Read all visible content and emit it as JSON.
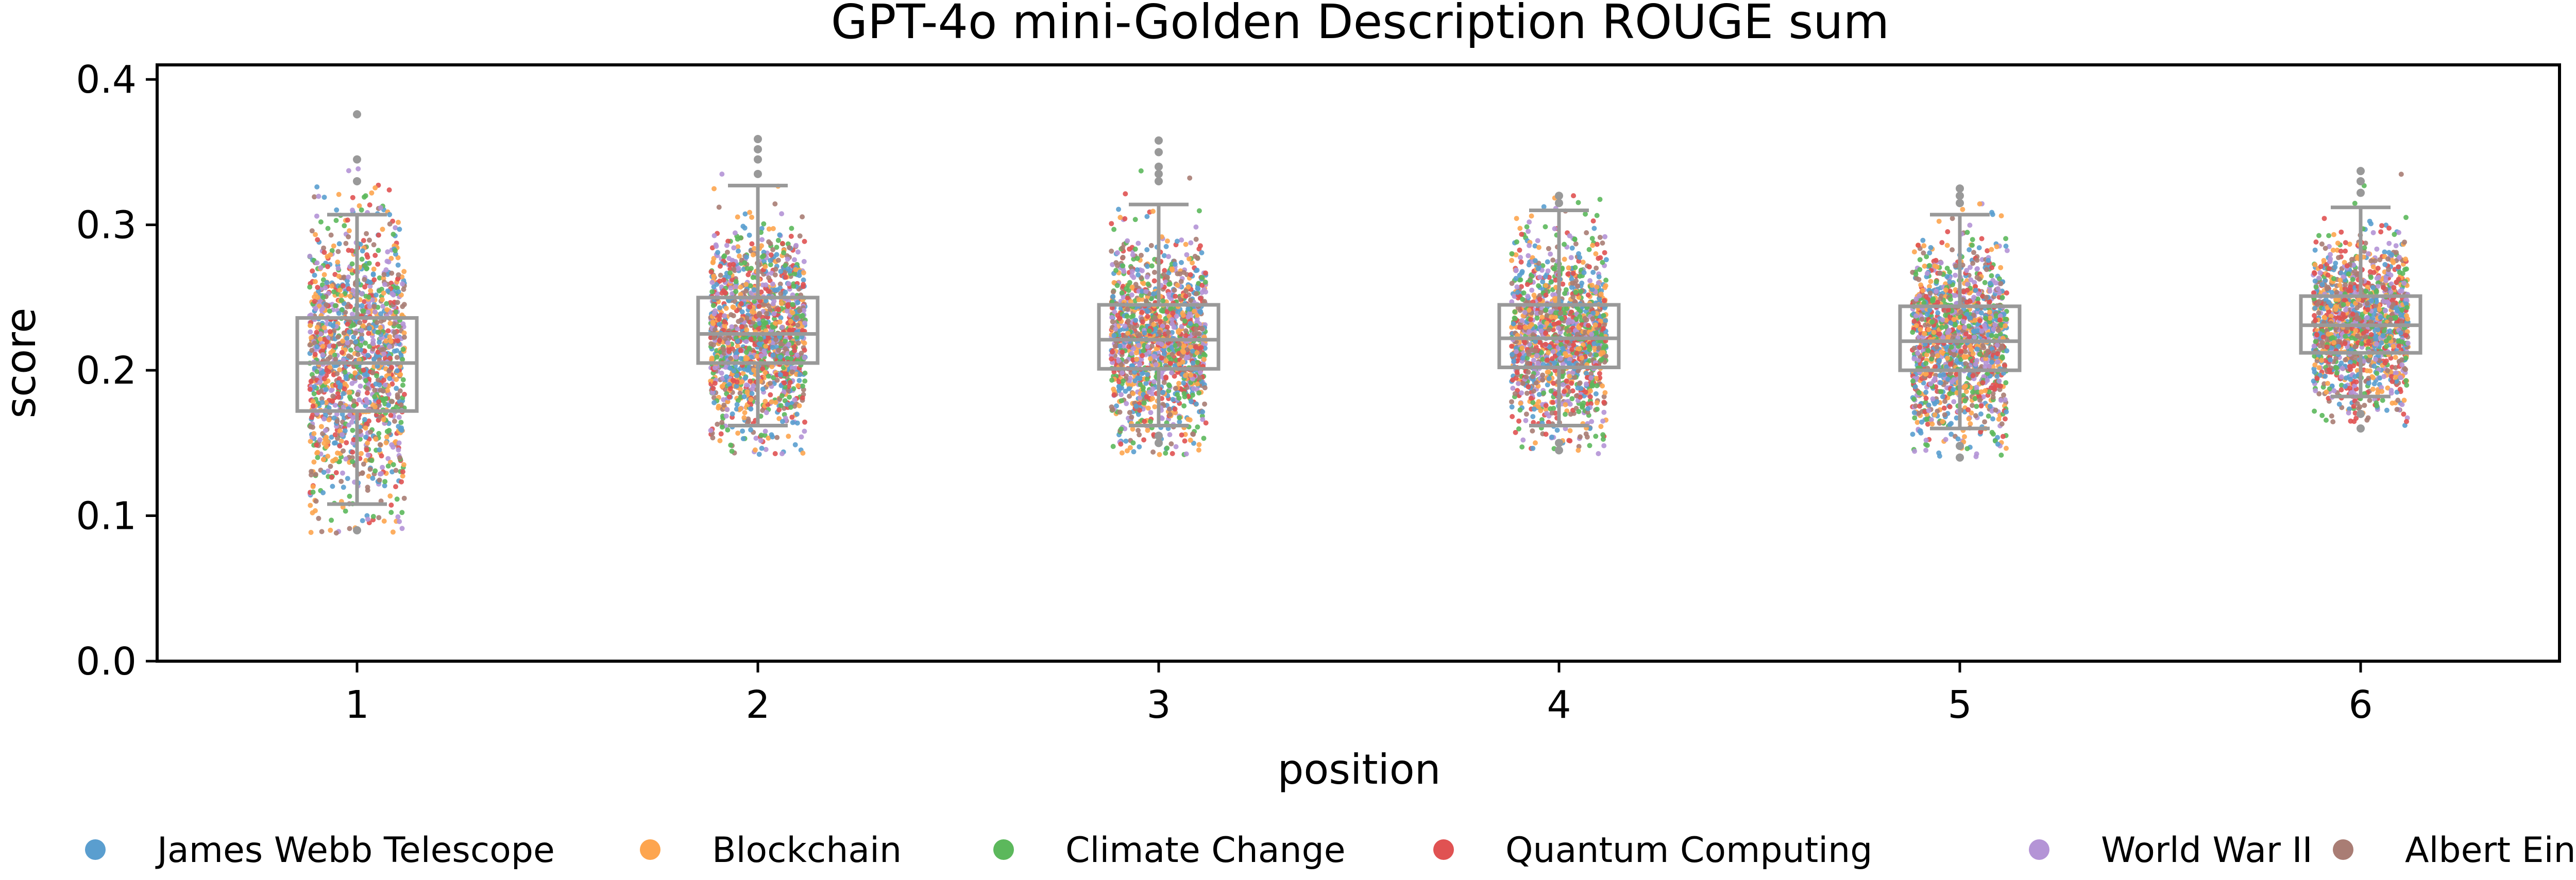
{
  "chart_data": {
    "type": "box-strip",
    "title": "GPT-4o mini-Golden Description ROUGE sum",
    "xlabel": "position",
    "ylabel": "score",
    "categories": [
      "1",
      "2",
      "3",
      "4",
      "5",
      "6"
    ],
    "ylim": [
      0.0,
      0.41
    ],
    "yticks": [
      0.0,
      0.1,
      0.2,
      0.3,
      0.4
    ],
    "ytick_labels": [
      "0.0",
      "0.1",
      "0.2",
      "0.3",
      "0.4"
    ],
    "grid": false,
    "legend_position": "bottom",
    "series": [
      {
        "name": "James Webb Telescope",
        "color": "#5a9ecf"
      },
      {
        "name": "Blockchain",
        "color": "#fda54f"
      },
      {
        "name": "Climate Change",
        "color": "#5cb85c"
      },
      {
        "name": "Quantum Computing",
        "color": "#e05252"
      },
      {
        "name": "World War II",
        "color": "#b494d6"
      },
      {
        "name": "Albert Einstein",
        "color": "#a97d74"
      }
    ],
    "boxes": [
      {
        "position": "1",
        "whisker_low": 0.108,
        "q1": 0.172,
        "median": 0.205,
        "q3": 0.236,
        "whisker_high": 0.307,
        "outliers": [
          0.09,
          0.33,
          0.345,
          0.376
        ]
      },
      {
        "position": "2",
        "whisker_low": 0.162,
        "q1": 0.205,
        "median": 0.225,
        "q3": 0.25,
        "whisker_high": 0.327,
        "outliers": [
          0.335,
          0.345,
          0.352,
          0.359
        ]
      },
      {
        "position": "3",
        "whisker_low": 0.162,
        "q1": 0.201,
        "median": 0.221,
        "q3": 0.245,
        "whisker_high": 0.314,
        "outliers": [
          0.155,
          0.15,
          0.33,
          0.335,
          0.34,
          0.35,
          0.358
        ]
      },
      {
        "position": "4",
        "whisker_low": 0.162,
        "q1": 0.202,
        "median": 0.222,
        "q3": 0.245,
        "whisker_high": 0.31,
        "outliers": [
          0.15,
          0.145,
          0.315,
          0.32
        ]
      },
      {
        "position": "5",
        "whisker_low": 0.16,
        "q1": 0.2,
        "median": 0.22,
        "q3": 0.244,
        "whisker_high": 0.307,
        "outliers": [
          0.148,
          0.14,
          0.315,
          0.32,
          0.325
        ]
      },
      {
        "position": "6",
        "whisker_low": 0.182,
        "q1": 0.212,
        "median": 0.231,
        "q3": 0.251,
        "whisker_high": 0.312,
        "outliers": [
          0.17,
          0.16,
          0.322,
          0.33,
          0.337
        ]
      }
    ],
    "box_color": "#999999"
  }
}
